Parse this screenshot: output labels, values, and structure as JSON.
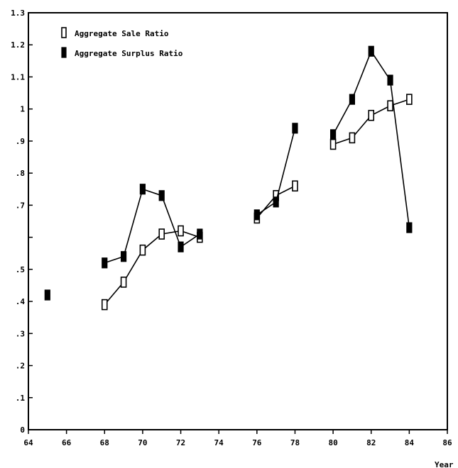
{
  "chart_data": {
    "type": "line",
    "title": "",
    "xlabel": "Year",
    "ylabel": "",
    "xlim": [
      64,
      86
    ],
    "ylim": [
      0,
      1.3
    ],
    "x_ticks": [
      64,
      66,
      68,
      70,
      72,
      74,
      76,
      78,
      80,
      82,
      84,
      86
    ],
    "x_tick_labels": [
      "64",
      "66",
      "68",
      "70",
      "72",
      "74",
      "76",
      "78",
      "80",
      "82",
      "84",
      "86"
    ],
    "y_ticks": [
      0,
      0.1,
      0.2,
      0.3,
      0.4,
      0.5,
      0.6,
      0.7,
      0.8,
      0.9,
      1.0,
      1.1,
      1.2,
      1.3
    ],
    "y_tick_labels": [
      "0",
      ".1",
      ".2",
      ".3",
      ".4",
      ".5",
      "",
      ".7",
      ".8",
      ".9",
      "1",
      "1.1",
      "1.2",
      "1.3"
    ],
    "grid": false,
    "legend_position": "top-left",
    "series": [
      {
        "name": "Aggregate Sale Ratio",
        "marker": "hollow-rectangle",
        "segments": [
          [
            {
              "x": 68,
              "y": 0.39
            },
            {
              "x": 69,
              "y": 0.46
            },
            {
              "x": 70,
              "y": 0.56
            },
            {
              "x": 71,
              "y": 0.61
            },
            {
              "x": 72,
              "y": 0.62
            },
            {
              "x": 73,
              "y": 0.6
            }
          ],
          [
            {
              "x": 76,
              "y": 0.66
            },
            {
              "x": 77,
              "y": 0.73
            },
            {
              "x": 78,
              "y": 0.76
            }
          ],
          [
            {
              "x": 80,
              "y": 0.89
            },
            {
              "x": 81,
              "y": 0.91
            },
            {
              "x": 82,
              "y": 0.98
            },
            {
              "x": 83,
              "y": 1.01
            },
            {
              "x": 84,
              "y": 1.03
            }
          ]
        ]
      },
      {
        "name": "Aggregate Surplus Ratio",
        "marker": "solid-rectangle",
        "segments": [
          [
            {
              "x": 65,
              "y": 0.42
            }
          ],
          [
            {
              "x": 68,
              "y": 0.52
            },
            {
              "x": 69,
              "y": 0.54
            },
            {
              "x": 70,
              "y": 0.75
            },
            {
              "x": 71,
              "y": 0.73
            },
            {
              "x": 72,
              "y": 0.57
            },
            {
              "x": 73,
              "y": 0.61
            }
          ],
          [
            {
              "x": 76,
              "y": 0.67
            },
            {
              "x": 77,
              "y": 0.71
            },
            {
              "x": 78,
              "y": 0.94
            }
          ],
          [
            {
              "x": 80,
              "y": 0.92
            },
            {
              "x": 81,
              "y": 1.03
            },
            {
              "x": 82,
              "y": 1.18
            },
            {
              "x": 83,
              "y": 1.09
            },
            {
              "x": 84,
              "y": 0.63
            }
          ]
        ]
      }
    ]
  }
}
